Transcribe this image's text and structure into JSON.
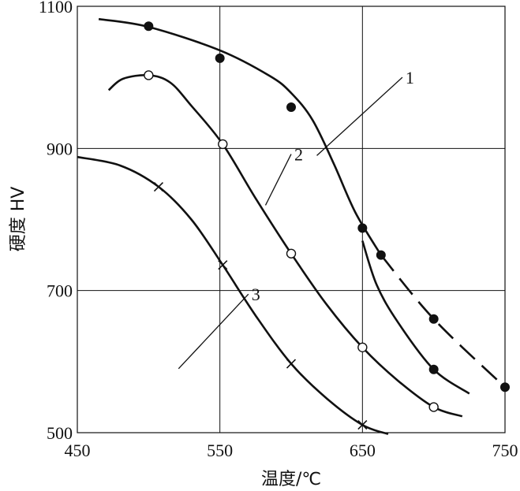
{
  "chart_data": {
    "type": "line",
    "xlabel": "温度/℃",
    "ylabel": "硬度 HV",
    "xlim": [
      450,
      750
    ],
    "ylim": [
      500,
      1100
    ],
    "xticks": [
      450,
      550,
      650,
      750
    ],
    "yticks": [
      500,
      700,
      900,
      1100
    ],
    "grid": true,
    "series": [
      {
        "name": "1",
        "marker": "filled-circle",
        "points": [
          [
            500,
            1072
          ],
          [
            550,
            1027
          ],
          [
            600,
            958
          ],
          [
            650,
            788
          ],
          [
            663,
            750
          ],
          [
            700,
            660
          ],
          [
            750,
            564
          ]
        ],
        "curve": [
          [
            465,
            1082
          ],
          [
            500,
            1071
          ],
          [
            550,
            1038
          ],
          [
            585,
            1002
          ],
          [
            600,
            978
          ],
          [
            615,
            940
          ],
          [
            630,
            878
          ],
          [
            645,
            810
          ],
          [
            663,
            750
          ],
          [
            700,
            660
          ],
          [
            750,
            564
          ]
        ],
        "dashed_from": 680
      },
      {
        "name": "2",
        "marker": "open-circle",
        "points": [
          [
            500,
            1003
          ],
          [
            552,
            906
          ],
          [
            600,
            752
          ],
          [
            650,
            620
          ],
          [
            700,
            536
          ]
        ],
        "curve": [
          [
            472,
            982
          ],
          [
            482,
            998
          ],
          [
            500,
            1003
          ],
          [
            515,
            993
          ],
          [
            530,
            960
          ],
          [
            552,
            906
          ],
          [
            575,
            830
          ],
          [
            600,
            752
          ],
          [
            625,
            680
          ],
          [
            650,
            620
          ],
          [
            675,
            573
          ],
          [
            700,
            536
          ],
          [
            720,
            523
          ]
        ]
      },
      {
        "name": "3",
        "marker": "cross",
        "points": [
          [
            507,
            846
          ],
          [
            552,
            736
          ],
          [
            600,
            597
          ],
          [
            650,
            511
          ]
        ],
        "curve": [
          [
            450,
            888
          ],
          [
            480,
            876
          ],
          [
            507,
            846
          ],
          [
            530,
            800
          ],
          [
            552,
            736
          ],
          [
            575,
            665
          ],
          [
            600,
            597
          ],
          [
            625,
            548
          ],
          [
            650,
            511
          ],
          [
            668,
            498
          ]
        ]
      },
      {
        "name": "",
        "marker": "filled-circle",
        "points": [
          [
            700,
            589
          ]
        ],
        "curve": [
          [
            650,
            770
          ],
          [
            660,
            708
          ],
          [
            675,
            655
          ],
          [
            700,
            589
          ],
          [
            725,
            555
          ]
        ]
      }
    ],
    "callouts": [
      {
        "label": "1",
        "from": [
          618,
          890
        ],
        "to": [
          678,
          1000
        ]
      },
      {
        "label": "2",
        "from": [
          582,
          820
        ],
        "to": [
          600,
          892
        ]
      },
      {
        "label": "3",
        "from": [
          521,
          590
        ],
        "to": [
          570,
          695
        ]
      }
    ]
  }
}
